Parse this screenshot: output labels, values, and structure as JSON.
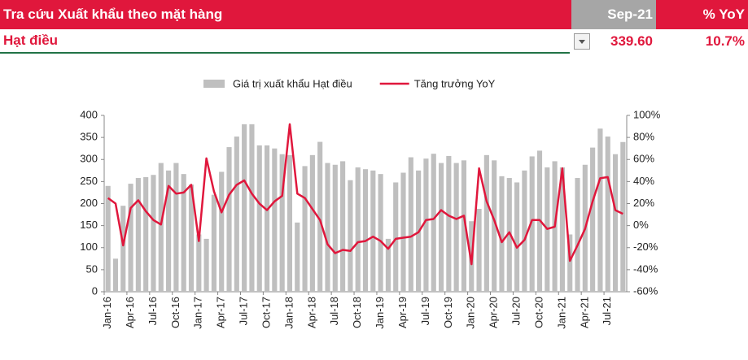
{
  "header": {
    "title": "Tra cứu Xuất khẩu theo mặt hàng",
    "period": "Sep-21",
    "yoy_label": "% YoY",
    "item": "Hạt điều",
    "value": "339.60",
    "yoy": "10.7%"
  },
  "chart_data": {
    "type": "bar",
    "categories": [
      "Jan-16",
      null,
      null,
      "Apr-16",
      null,
      null,
      "Jul-16",
      null,
      null,
      "Oct-16",
      null,
      null,
      "Jan-17",
      null,
      null,
      "Apr-17",
      null,
      null,
      "Jul-17",
      null,
      null,
      "Oct-17",
      null,
      null,
      "Jan-18",
      null,
      null,
      "Apr-18",
      null,
      null,
      "Jul-18",
      null,
      null,
      "Oct-18",
      null,
      null,
      "Jan-19",
      null,
      null,
      "Apr-19",
      null,
      null,
      "Jul-19",
      null,
      null,
      "Oct-19",
      null,
      null,
      "Jan-20",
      null,
      null,
      "Apr-20",
      null,
      null,
      "Jul-20",
      null,
      null,
      "Oct-20",
      null,
      null,
      "Jan-21",
      null,
      null,
      "Apr-21",
      null,
      null,
      "Jul-21",
      null,
      null
    ],
    "series": [
      {
        "name": "Giá trị xuất khẩu Hạt điều",
        "type": "bar",
        "color": "#bfbfbf",
        "values": [
          240,
          75,
          195,
          245,
          258,
          260,
          265,
          292,
          275,
          292,
          267,
          243,
          130,
          120,
          220,
          272,
          328,
          352,
          380,
          380,
          332,
          332,
          325,
          312,
          310,
          157,
          285,
          310,
          340,
          292,
          288,
          296,
          253,
          282,
          278,
          275,
          267,
          120,
          248,
          270,
          305,
          275,
          302,
          313,
          292,
          308,
          292,
          298,
          160,
          188,
          310,
          298,
          262,
          258,
          248,
          275,
          307,
          320,
          282,
          296,
          282,
          130,
          258,
          288,
          327,
          370,
          352,
          312,
          339.6
        ]
      },
      {
        "name": "Tăng trưởng YoY",
        "type": "line",
        "axis": "y2",
        "color": "#e0173c",
        "values": [
          25,
          20,
          -18,
          16,
          23,
          13,
          5,
          1,
          36,
          29,
          30,
          37,
          -14,
          61,
          31,
          12,
          28,
          37,
          41,
          29,
          20,
          14,
          22,
          27,
          92,
          29,
          25,
          15,
          5,
          -17,
          -25,
          -22,
          -23,
          -15,
          -14,
          -10,
          -14,
          -21,
          -12,
          -11,
          -10,
          -6,
          5,
          6,
          14,
          9,
          6,
          9,
          -35,
          52,
          22,
          5,
          -15,
          -6,
          -20,
          -13,
          5,
          5,
          -3,
          -1,
          52,
          -32,
          -18,
          -3,
          22,
          43,
          44,
          14,
          10.7
        ]
      }
    ],
    "ylim": [
      0,
      400
    ],
    "yticks": [
      0,
      50,
      100,
      150,
      200,
      250,
      300,
      350,
      400
    ],
    "y2lim": [
      -60,
      100
    ],
    "y2ticks": [
      {
        "value": -60,
        "label": "-60%"
      },
      {
        "value": -40,
        "label": "-40%"
      },
      {
        "value": -20,
        "label": "-20%"
      },
      {
        "value": 0,
        "label": "0%"
      },
      {
        "value": 20,
        "label": "20%"
      },
      {
        "value": 40,
        "label": "40%"
      },
      {
        "value": 60,
        "label": "60%"
      },
      {
        "value": 80,
        "label": "80%"
      },
      {
        "value": 100,
        "label": "100%"
      }
    ],
    "legend": "top"
  }
}
